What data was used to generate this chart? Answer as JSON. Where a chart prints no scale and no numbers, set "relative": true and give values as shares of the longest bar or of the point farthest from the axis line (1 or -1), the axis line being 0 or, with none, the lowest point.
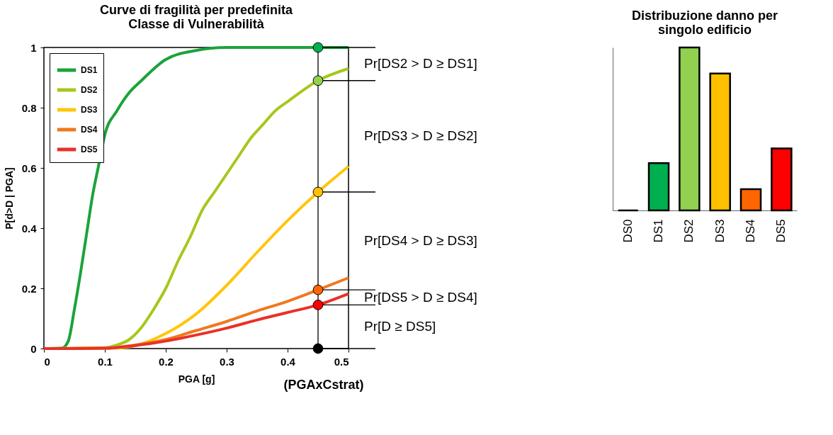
{
  "chart_data": [
    {
      "type": "line",
      "title": "Curve di fragilità per predefinita\nClasse di Vulnerabilità",
      "xlabel": "PGA [g]",
      "ylabel": "P[d>D | PGA]",
      "xlim": [
        0,
        0.5
      ],
      "xticks": [
        0,
        0.1,
        0.2,
        0.3,
        0.4,
        0.5
      ],
      "ylim": [
        0,
        1
      ],
      "yticks": [
        0,
        0.2,
        0.4,
        0.6,
        0.8,
        1
      ],
      "grid": false,
      "legend": "top left",
      "line_style": "solid",
      "series": [
        {
          "name": "DS1",
          "color": "#1aa33a",
          "x": [
            0,
            0.03,
            0.04,
            0.05,
            0.06,
            0.07,
            0.08,
            0.09,
            0.1,
            0.12,
            0.14,
            0.16,
            0.2,
            0.25,
            0.3,
            0.4,
            0.5
          ],
          "values": [
            0,
            0.002,
            0.025,
            0.13,
            0.25,
            0.38,
            0.51,
            0.61,
            0.71,
            0.79,
            0.85,
            0.89,
            0.96,
            0.99,
            1,
            1,
            1
          ]
        },
        {
          "name": "DS2",
          "color": "#a5c81e",
          "x": [
            0,
            0.1,
            0.12,
            0.14,
            0.16,
            0.18,
            0.2,
            0.22,
            0.24,
            0.26,
            0.28,
            0.3,
            0.32,
            0.34,
            0.36,
            0.38,
            0.4,
            0.45,
            0.5
          ],
          "values": [
            0,
            0.003,
            0.012,
            0.03,
            0.07,
            0.13,
            0.2,
            0.29,
            0.37,
            0.46,
            0.52,
            0.58,
            0.64,
            0.7,
            0.745,
            0.79,
            0.82,
            0.89,
            0.93
          ]
        },
        {
          "name": "DS3",
          "color": "#ffc60a",
          "x": [
            0,
            0.12,
            0.15,
            0.2,
            0.25,
            0.3,
            0.35,
            0.4,
            0.45,
            0.5
          ],
          "values": [
            0,
            0.002,
            0.01,
            0.05,
            0.115,
            0.21,
            0.32,
            0.425,
            0.52,
            0.605
          ]
        },
        {
          "name": "DS4",
          "color": "#f07820",
          "x": [
            0,
            0.1,
            0.15,
            0.2,
            0.25,
            0.3,
            0.35,
            0.4,
            0.45,
            0.5
          ],
          "values": [
            0,
            0.002,
            0.012,
            0.03,
            0.06,
            0.09,
            0.125,
            0.157,
            0.195,
            0.235
          ]
        },
        {
          "name": "DS5",
          "color": "#e83228",
          "x": [
            0,
            0.1,
            0.15,
            0.2,
            0.25,
            0.3,
            0.35,
            0.4,
            0.45,
            0.5
          ],
          "values": [
            0,
            0.001,
            0.01,
            0.025,
            0.045,
            0.068,
            0.095,
            0.12,
            0.145,
            0.182
          ]
        },
        {
          "type": "scatter",
          "marker": "circle",
          "x": [
            0.45,
            0.45,
            0.45,
            0.45,
            0.45,
            0.45
          ],
          "values": [
            1,
            0.89,
            0.52,
            0.195,
            0.145,
            0
          ],
          "colors": [
            "#00b050",
            "#92d050",
            "#ffc000",
            "#ff6600",
            "#ff0000",
            "#000000"
          ]
        }
      ],
      "ref_lines": [
        {
          "axis": "x",
          "value": 0.45,
          "color": "#000000"
        },
        {
          "axis": "y",
          "value": 1,
          "color": "#000000"
        },
        {
          "axis": "y",
          "value": 0.89,
          "color": "#000000"
        },
        {
          "axis": "y",
          "value": 0.52,
          "color": "#000000"
        },
        {
          "axis": "y",
          "value": 0.195,
          "color": "#000000"
        },
        {
          "axis": "y",
          "value": 0.145,
          "color": "#000000"
        },
        {
          "axis": "y",
          "value": 0,
          "color": "#000000"
        }
      ],
      "annotations": [
        "Pr[DS2 > D ≥ DS1]",
        "Pr[DS3 > D ≥ DS2]",
        "Pr[DS4 > D ≥ DS3]",
        "Pr[DS5 > D ≥ DS4]",
        "Pr[D ≥ DS5]",
        "(PGAxCstrat)"
      ]
    },
    {
      "type": "bar",
      "title": "Distribuzione danno per\nsingolo edificio",
      "relative": true,
      "categories": [
        "DS0",
        "DS1",
        "DS2",
        "DS3",
        "DS4",
        "DS5"
      ],
      "values": [
        0,
        0.29,
        1,
        0.84,
        0.13,
        0.38
      ],
      "colors": [
        "#000000",
        "#00b050",
        "#92d050",
        "#ffc000",
        "#ff6600",
        "#ff0000"
      ],
      "legend": false
    }
  ]
}
